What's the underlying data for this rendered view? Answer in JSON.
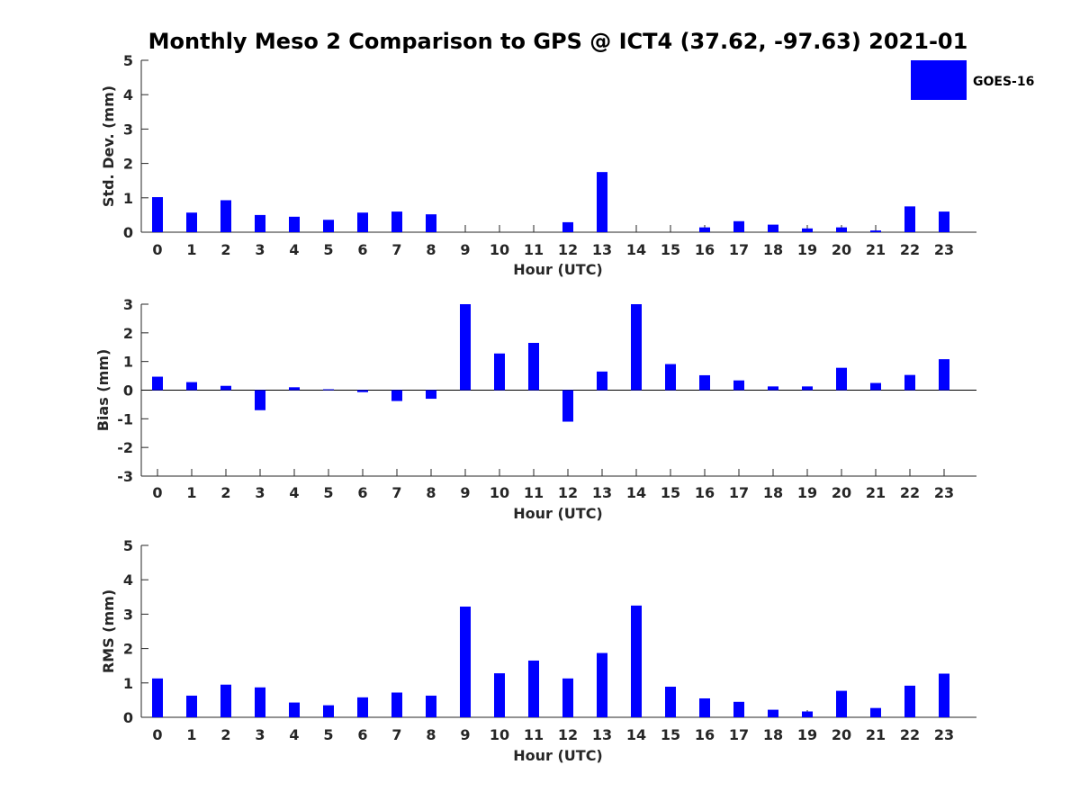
{
  "title": "Monthly Meso 2 Comparison to GPS @ ICT4 (37.62, -97.63) 2021-01",
  "legend": {
    "label": "GOES-16",
    "position": "top-right"
  },
  "colors": {
    "bar": "#0000ff",
    "axis": "#262626",
    "text": "#262626",
    "background": "#ffffff"
  },
  "chart_data": [
    {
      "type": "bar",
      "title": "Monthly Meso 2 Comparison to GPS @ ICT4 (37.62, -97.63) 2021-01",
      "xlabel": "Hour (UTC)",
      "ylabel": "Std. Dev. (mm)",
      "ylim": [
        0,
        5
      ],
      "yticks": [
        "0",
        "1",
        "2",
        "3",
        "4",
        "5"
      ],
      "grid": false,
      "categories": [
        "0",
        "1",
        "2",
        "3",
        "4",
        "5",
        "6",
        "7",
        "8",
        "9",
        "10",
        "11",
        "12",
        "13",
        "14",
        "15",
        "16",
        "17",
        "18",
        "19",
        "20",
        "21",
        "22",
        "23"
      ],
      "series": [
        {
          "name": "GOES-16",
          "values": [
            1.02,
            0.57,
            0.93,
            0.5,
            0.45,
            0.36,
            0.57,
            0.6,
            0.52,
            0.0,
            0.0,
            0.0,
            0.29,
            1.75,
            0.0,
            0.0,
            0.14,
            0.32,
            0.22,
            0.11,
            0.14,
            0.05,
            0.75,
            0.6
          ]
        }
      ]
    },
    {
      "type": "bar",
      "title": "",
      "xlabel": "Hour (UTC)",
      "ylabel": "Bias (mm)",
      "ylim": [
        -3,
        3
      ],
      "yticks": [
        "-3",
        "-2",
        "-1",
        "0",
        "1",
        "2",
        "3"
      ],
      "grid": false,
      "categories": [
        "0",
        "1",
        "2",
        "3",
        "4",
        "5",
        "6",
        "7",
        "8",
        "9",
        "10",
        "11",
        "12",
        "13",
        "14",
        "15",
        "16",
        "17",
        "18",
        "19",
        "20",
        "21",
        "22",
        "23"
      ],
      "series": [
        {
          "name": "GOES-16",
          "values": [
            0.47,
            0.28,
            0.15,
            -0.7,
            0.1,
            0.03,
            -0.07,
            -0.38,
            -0.3,
            3.0,
            1.28,
            1.65,
            -1.1,
            0.65,
            3.0,
            0.91,
            0.52,
            0.34,
            0.13,
            0.13,
            0.78,
            0.25,
            0.53,
            1.08
          ]
        }
      ]
    },
    {
      "type": "bar",
      "title": "",
      "xlabel": "Hour (UTC)",
      "ylabel": "RMS (mm)",
      "ylim": [
        0,
        5
      ],
      "yticks": [
        "0",
        "1",
        "2",
        "3",
        "4",
        "5"
      ],
      "grid": false,
      "categories": [
        "0",
        "1",
        "2",
        "3",
        "4",
        "5",
        "6",
        "7",
        "8",
        "9",
        "10",
        "11",
        "12",
        "13",
        "14",
        "15",
        "16",
        "17",
        "18",
        "19",
        "20",
        "21",
        "22",
        "23"
      ],
      "series": [
        {
          "name": "GOES-16",
          "values": [
            1.13,
            0.63,
            0.95,
            0.87,
            0.43,
            0.35,
            0.58,
            0.72,
            0.63,
            3.22,
            1.28,
            1.65,
            1.13,
            1.87,
            3.25,
            0.89,
            0.55,
            0.45,
            0.22,
            0.17,
            0.77,
            0.27,
            0.92,
            1.27
          ]
        }
      ]
    }
  ]
}
